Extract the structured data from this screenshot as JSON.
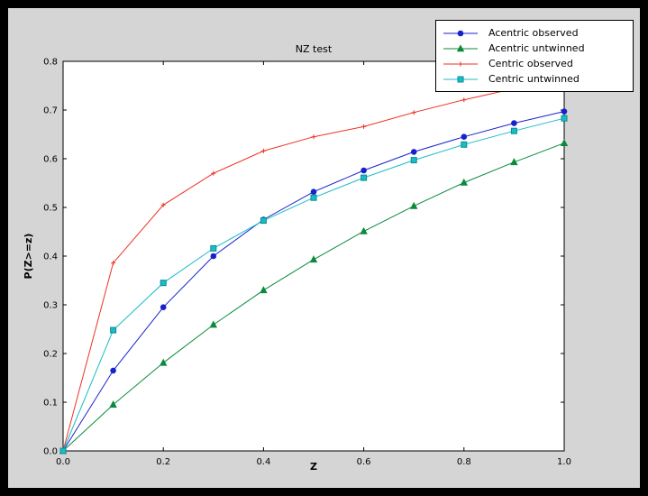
{
  "window": {
    "background": "#000000",
    "figure_background": "#d5d5d5",
    "plot_background": "#ffffff"
  },
  "chart_data": {
    "type": "line",
    "title": "NZ test",
    "xlabel": "Z",
    "ylabel": "P(Z>=z)",
    "xlim": [
      0.0,
      1.0
    ],
    "ylim": [
      0.0,
      0.8
    ],
    "xticks": [
      0.0,
      0.2,
      0.4,
      0.6,
      0.8,
      1.0
    ],
    "yticks": [
      0.0,
      0.1,
      0.2,
      0.3,
      0.4,
      0.5,
      0.6,
      0.7,
      0.8
    ],
    "grid": false,
    "legend_position": "upper right",
    "x": [
      0.0,
      0.1,
      0.2,
      0.3,
      0.4,
      0.5,
      0.6,
      0.7,
      0.8,
      0.9,
      1.0
    ],
    "series": [
      {
        "name": "Acentric observed",
        "color": "#1822cc",
        "marker": "circle",
        "values": [
          0.0,
          0.165,
          0.295,
          0.4,
          0.475,
          0.532,
          0.576,
          0.614,
          0.645,
          0.673,
          0.697
        ]
      },
      {
        "name": "Acentric untwinned",
        "color": "#0a8a3c",
        "marker": "triangle",
        "values": [
          0.0,
          0.095,
          0.181,
          0.259,
          0.33,
          0.393,
          0.451,
          0.503,
          0.551,
          0.593,
          0.632
        ]
      },
      {
        "name": "Centric observed",
        "color": "#ee3124",
        "marker": "plus",
        "values": [
          0.0,
          0.386,
          0.505,
          0.57,
          0.616,
          0.645,
          0.666,
          0.695,
          0.721,
          0.744,
          0.757
        ]
      },
      {
        "name": "Centric untwinned",
        "color": "#18bdc8",
        "marker": "square",
        "marker_edge": "#0c8a92",
        "values": [
          0.0,
          0.248,
          0.345,
          0.416,
          0.473,
          0.52,
          0.561,
          0.597,
          0.629,
          0.657,
          0.683
        ]
      }
    ]
  }
}
